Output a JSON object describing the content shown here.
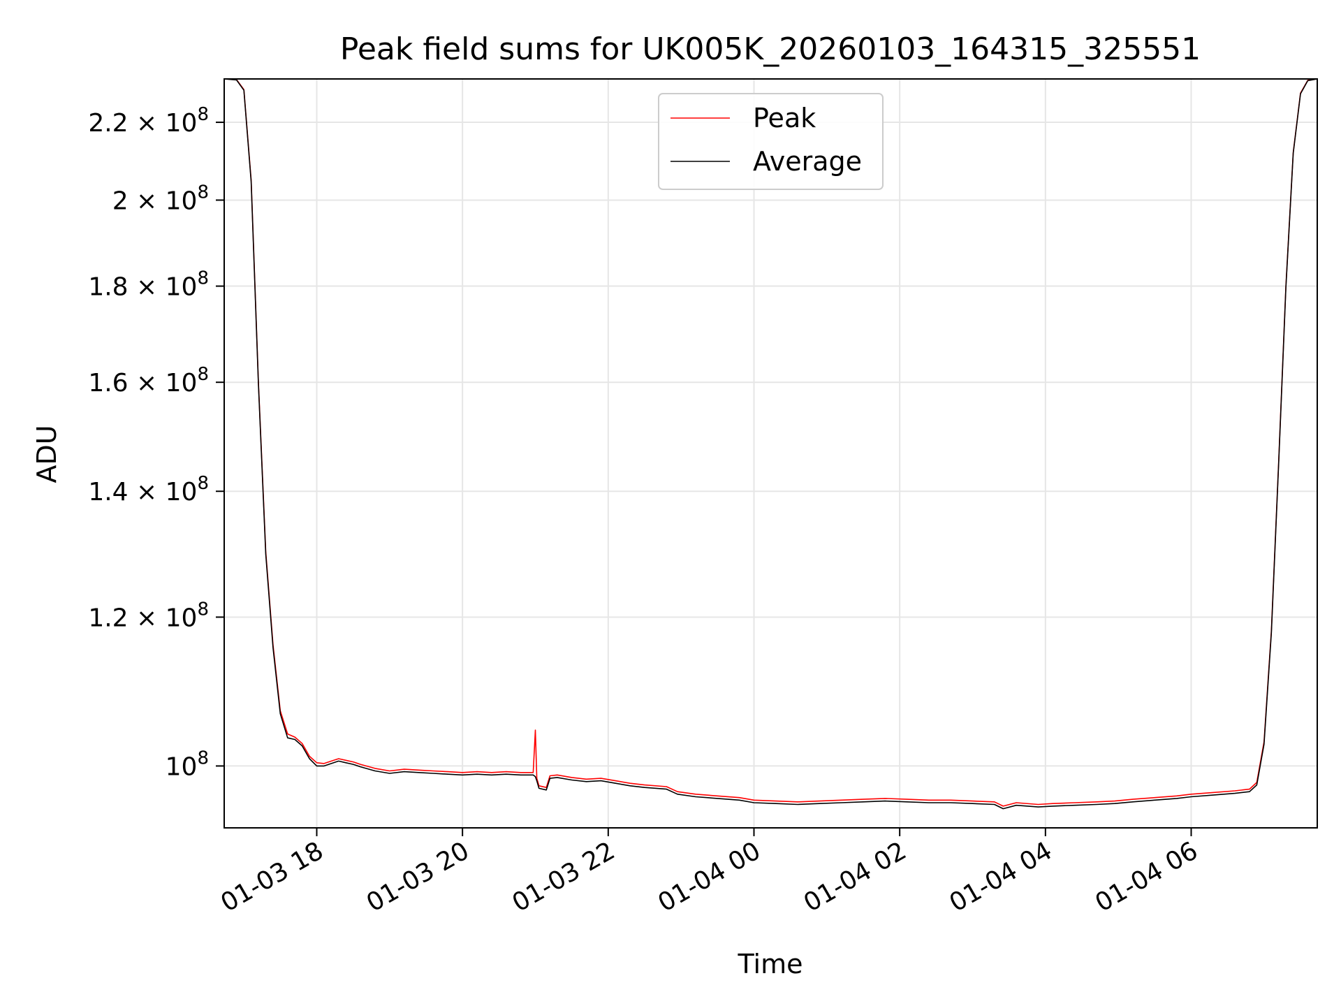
{
  "chart_data": {
    "type": "line",
    "title": "Peak field sums for UK005K_20260103_164315_325551",
    "xlabel": "Time",
    "ylabel": "ADU",
    "y_scale": "log",
    "x_unit": "hours since 2026-01-03 00:00",
    "xlim": [
      16.73,
      31.73
    ],
    "ylim": [
      92700000,
      232000000
    ],
    "x_ticks": [
      {
        "value": 18,
        "label": "01-03 18"
      },
      {
        "value": 20,
        "label": "01-03 20"
      },
      {
        "value": 22,
        "label": "01-03 22"
      },
      {
        "value": 24,
        "label": "01-04 00"
      },
      {
        "value": 26,
        "label": "01-04 02"
      },
      {
        "value": 28,
        "label": "01-04 04"
      },
      {
        "value": 30,
        "label": "01-04 06"
      }
    ],
    "y_ticks": [
      {
        "value": 100000000,
        "mantissa": "",
        "exponent": "8",
        "prefix": "10"
      },
      {
        "value": 120000000,
        "mantissa": "1.2",
        "exponent": "8",
        "prefix": "10"
      },
      {
        "value": 140000000,
        "mantissa": "1.4",
        "exponent": "8",
        "prefix": "10"
      },
      {
        "value": 160000000,
        "mantissa": "1.6",
        "exponent": "8",
        "prefix": "10"
      },
      {
        "value": 180000000,
        "mantissa": "1.8",
        "exponent": "8",
        "prefix": "10"
      },
      {
        "value": 200000000,
        "mantissa": "2",
        "exponent": "8",
        "prefix": "10"
      },
      {
        "value": 220000000,
        "mantissa": "2.2",
        "exponent": "8",
        "prefix": "10"
      }
    ],
    "times_symbol": "×",
    "grid": true,
    "legend": {
      "location": "upper center",
      "entries": [
        "Peak",
        "Average"
      ]
    },
    "series": [
      {
        "name": "Peak",
        "color": "#ff0000",
        "points": [
          [
            16.73,
            232000000
          ],
          [
            16.9,
            231800000
          ],
          [
            17.0,
            229000000
          ],
          [
            17.1,
            205000000
          ],
          [
            17.2,
            160000000
          ],
          [
            17.3,
            130000000
          ],
          [
            17.4,
            116000000
          ],
          [
            17.5,
            107000000
          ],
          [
            17.6,
            104000000
          ],
          [
            17.7,
            103600000
          ],
          [
            17.8,
            102800000
          ],
          [
            17.9,
            101200000
          ],
          [
            18.0,
            100400000
          ],
          [
            18.1,
            100300000
          ],
          [
            18.2,
            100600000
          ],
          [
            18.3,
            100900000
          ],
          [
            18.4,
            100700000
          ],
          [
            18.5,
            100500000
          ],
          [
            18.6,
            100200000
          ],
          [
            18.8,
            99700000
          ],
          [
            19.0,
            99400000
          ],
          [
            19.2,
            99600000
          ],
          [
            19.4,
            99500000
          ],
          [
            19.6,
            99400000
          ],
          [
            19.8,
            99300000
          ],
          [
            20.0,
            99200000
          ],
          [
            20.2,
            99300000
          ],
          [
            20.4,
            99200000
          ],
          [
            20.6,
            99300000
          ],
          [
            20.8,
            99200000
          ],
          [
            20.97,
            99200000
          ],
          [
            21.0,
            104500000
          ],
          [
            21.02,
            98500000
          ],
          [
            21.05,
            97600000
          ],
          [
            21.15,
            97400000
          ],
          [
            21.2,
            98800000
          ],
          [
            21.3,
            98900000
          ],
          [
            21.5,
            98600000
          ],
          [
            21.7,
            98400000
          ],
          [
            21.9,
            98500000
          ],
          [
            22.1,
            98200000
          ],
          [
            22.3,
            97900000
          ],
          [
            22.5,
            97700000
          ],
          [
            22.8,
            97500000
          ],
          [
            22.95,
            96900000
          ],
          [
            23.2,
            96600000
          ],
          [
            23.5,
            96400000
          ],
          [
            23.8,
            96200000
          ],
          [
            24.0,
            95900000
          ],
          [
            24.3,
            95800000
          ],
          [
            24.6,
            95700000
          ],
          [
            24.9,
            95800000
          ],
          [
            25.2,
            95900000
          ],
          [
            25.5,
            96000000
          ],
          [
            25.8,
            96100000
          ],
          [
            26.1,
            96000000
          ],
          [
            26.4,
            95900000
          ],
          [
            26.7,
            95900000
          ],
          [
            27.0,
            95800000
          ],
          [
            27.3,
            95700000
          ],
          [
            27.42,
            95200000
          ],
          [
            27.6,
            95600000
          ],
          [
            27.9,
            95400000
          ],
          [
            28.1,
            95500000
          ],
          [
            28.4,
            95600000
          ],
          [
            28.7,
            95700000
          ],
          [
            28.95,
            95800000
          ],
          [
            29.2,
            96000000
          ],
          [
            29.5,
            96200000
          ],
          [
            29.8,
            96400000
          ],
          [
            30.0,
            96600000
          ],
          [
            30.3,
            96800000
          ],
          [
            30.6,
            97000000
          ],
          [
            30.8,
            97200000
          ],
          [
            30.9,
            98000000
          ],
          [
            31.0,
            103000000
          ],
          [
            31.1,
            118000000
          ],
          [
            31.2,
            145000000
          ],
          [
            31.3,
            180000000
          ],
          [
            31.4,
            212000000
          ],
          [
            31.5,
            228000000
          ],
          [
            31.6,
            231600000
          ],
          [
            31.73,
            232000000
          ]
        ]
      },
      {
        "name": "Average",
        "color": "#000000",
        "points": [
          [
            16.73,
            232000000
          ],
          [
            16.9,
            231700000
          ],
          [
            17.0,
            228800000
          ],
          [
            17.1,
            204600000
          ],
          [
            17.2,
            159600000
          ],
          [
            17.3,
            129600000
          ],
          [
            17.4,
            115600000
          ],
          [
            17.5,
            106600000
          ],
          [
            17.6,
            103500000
          ],
          [
            17.7,
            103300000
          ],
          [
            17.8,
            102500000
          ],
          [
            17.9,
            100900000
          ],
          [
            18.0,
            100000000
          ],
          [
            18.1,
            100000000
          ],
          [
            18.2,
            100300000
          ],
          [
            18.3,
            100600000
          ],
          [
            18.4,
            100400000
          ],
          [
            18.5,
            100200000
          ],
          [
            18.6,
            99900000
          ],
          [
            18.8,
            99400000
          ],
          [
            19.0,
            99100000
          ],
          [
            19.2,
            99300000
          ],
          [
            19.4,
            99200000
          ],
          [
            19.6,
            99100000
          ],
          [
            19.8,
            99000000
          ],
          [
            20.0,
            98900000
          ],
          [
            20.2,
            99000000
          ],
          [
            20.4,
            98900000
          ],
          [
            20.6,
            99000000
          ],
          [
            20.8,
            98900000
          ],
          [
            20.97,
            98900000
          ],
          [
            21.0,
            98700000
          ],
          [
            21.02,
            98200000
          ],
          [
            21.05,
            97300000
          ],
          [
            21.15,
            97100000
          ],
          [
            21.2,
            98500000
          ],
          [
            21.3,
            98600000
          ],
          [
            21.5,
            98300000
          ],
          [
            21.7,
            98100000
          ],
          [
            21.9,
            98200000
          ],
          [
            22.1,
            97900000
          ],
          [
            22.3,
            97600000
          ],
          [
            22.5,
            97400000
          ],
          [
            22.8,
            97200000
          ],
          [
            22.95,
            96600000
          ],
          [
            23.2,
            96300000
          ],
          [
            23.5,
            96100000
          ],
          [
            23.8,
            95900000
          ],
          [
            24.0,
            95600000
          ],
          [
            24.3,
            95500000
          ],
          [
            24.6,
            95400000
          ],
          [
            24.9,
            95500000
          ],
          [
            25.2,
            95600000
          ],
          [
            25.5,
            95700000
          ],
          [
            25.8,
            95800000
          ],
          [
            26.1,
            95700000
          ],
          [
            26.4,
            95600000
          ],
          [
            26.7,
            95600000
          ],
          [
            27.0,
            95500000
          ],
          [
            27.3,
            95400000
          ],
          [
            27.42,
            94900000
          ],
          [
            27.6,
            95300000
          ],
          [
            27.9,
            95100000
          ],
          [
            28.1,
            95200000
          ],
          [
            28.4,
            95300000
          ],
          [
            28.7,
            95400000
          ],
          [
            28.95,
            95500000
          ],
          [
            29.2,
            95700000
          ],
          [
            29.5,
            95900000
          ],
          [
            29.8,
            96100000
          ],
          [
            30.0,
            96300000
          ],
          [
            30.3,
            96500000
          ],
          [
            30.6,
            96700000
          ],
          [
            30.8,
            96900000
          ],
          [
            30.9,
            97700000
          ],
          [
            31.0,
            102700000
          ],
          [
            31.1,
            117700000
          ],
          [
            31.2,
            144700000
          ],
          [
            31.3,
            179700000
          ],
          [
            31.4,
            211800000
          ],
          [
            31.5,
            227800000
          ],
          [
            31.6,
            231500000
          ],
          [
            31.73,
            232000000
          ]
        ]
      }
    ]
  }
}
